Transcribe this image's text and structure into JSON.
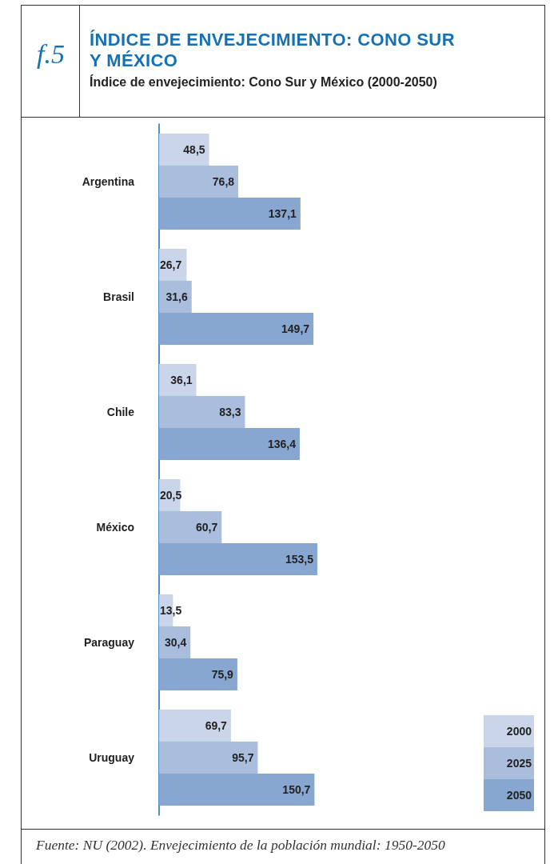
{
  "chart_data": {
    "type": "bar",
    "orientation": "horizontal",
    "title": "ÍNDICE DE ENVEJECIMIENTO: CONO SUR Y MÉXICO",
    "subtitle": "Índice de envejecimiento: Cono Sur y México (2000-2050)",
    "annotations": [
      "f.5",
      "Fuente: NU (2002). Envejecimiento de la población mundial: 1950-2050"
    ],
    "categories": [
      "Argentina",
      "Brasil",
      "Chile",
      "México",
      "Paraguay",
      "Uruguay"
    ],
    "series": [
      {
        "name": "2000",
        "color": "#cbd5e9",
        "values": [
          48.5,
          26.7,
          36.1,
          20.5,
          13.5,
          69.7
        ],
        "value_labels": [
          "48,5",
          "26,7",
          "36,1",
          "20,5",
          "13,5",
          "69,7"
        ]
      },
      {
        "name": "2025",
        "color": "#aabddd",
        "values": [
          76.8,
          31.6,
          83.3,
          60.7,
          30.4,
          95.7
        ],
        "value_labels": [
          "76,8",
          "31,6",
          "83,3",
          "60,7",
          "30,4",
          "95,7"
        ]
      },
      {
        "name": "2050",
        "color": "#88a7d0",
        "values": [
          137.1,
          149.7,
          136.4,
          153.5,
          75.9,
          150.7
        ],
        "value_labels": [
          "137,1",
          "149,7",
          "136,4",
          "153,5",
          "75,9",
          "150,7"
        ]
      }
    ],
    "legend": "bottom right",
    "tick_labels": "y"
  }
}
